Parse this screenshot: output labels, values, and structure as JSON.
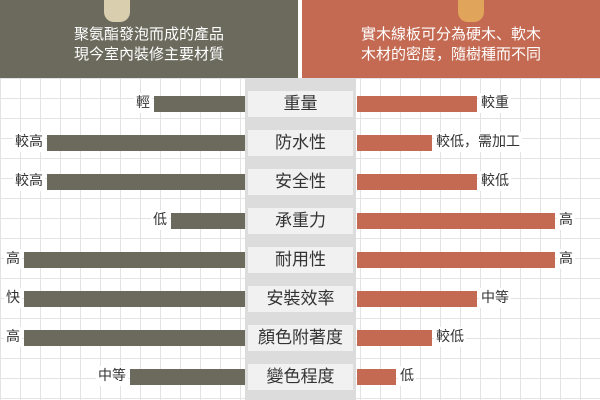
{
  "header": {
    "left_text": "聚氨酯發泡而成的產品\n現今室內裝修主要材質",
    "left_line1": "聚氨酯發泡而成的產品",
    "left_line2": "現今室內裝修主要材質",
    "right_line1": "實木線板可分為硬木、軟木",
    "right_line2": "木材的密度，隨樹種而不同"
  },
  "colors": {
    "left": "#6b6a5d",
    "right": "#c46a52",
    "center": "#dcdcdc"
  },
  "rows": [
    {
      "category": "重量",
      "left_label": "輕",
      "right_label": "較重",
      "left_level": 0.37,
      "right_level": 0.56
    },
    {
      "category": "防水性",
      "left_label": "較高",
      "right_label": "較低，需加工",
      "left_level": 0.81,
      "right_level": 0.35
    },
    {
      "category": "安全性",
      "left_label": "較高",
      "right_label": "較低",
      "left_level": 0.81,
      "right_level": 0.56
    },
    {
      "category": "承重力",
      "left_label": "低",
      "right_label": "高",
      "left_level": 0.3,
      "right_level": 0.92
    },
    {
      "category": "耐用性",
      "left_label": "高",
      "right_label": "高",
      "left_level": 0.9,
      "right_level": 0.92
    },
    {
      "category": "安裝效率",
      "left_label": "快",
      "right_label": "中等",
      "left_level": 0.9,
      "right_level": 0.56
    },
    {
      "category": "顏色附著度",
      "left_label": "高",
      "right_label": "較低",
      "left_level": 0.9,
      "right_level": 0.35
    },
    {
      "category": "變色程度",
      "left_label": "中等",
      "right_label": "低",
      "left_level": 0.47,
      "right_level": 0.18
    }
  ]
}
